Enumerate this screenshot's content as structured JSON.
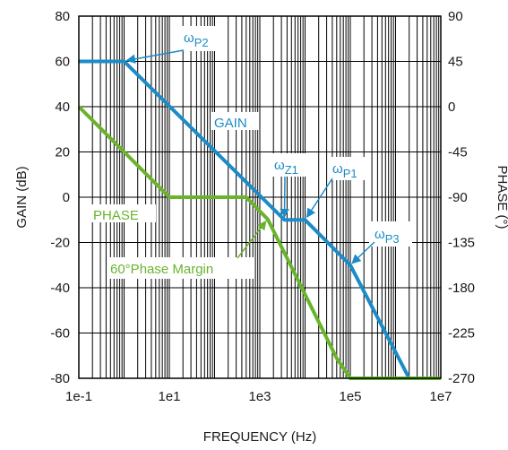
{
  "chart_data": {
    "type": "line",
    "xlabel": "FREQUENCY (Hz)",
    "ylabel_left": "GAIN (dB)",
    "ylabel_right": "PHASE (°)",
    "x_scale": "log",
    "x_range": [
      0.1,
      10000000
    ],
    "x_ticks": [
      {
        "value": 0.1,
        "label": "1e-1"
      },
      {
        "value": 10,
        "label": "1e1"
      },
      {
        "value": 1000,
        "label": "1e3"
      },
      {
        "value": 100000,
        "label": "1e5"
      },
      {
        "value": 10000000,
        "label": "1e7"
      }
    ],
    "y_left_range": [
      -80,
      80
    ],
    "y_left_ticks": [
      "80",
      "60",
      "40",
      "20",
      "0",
      "-20",
      "-40",
      "-60",
      "-80"
    ],
    "y_right_range": [
      -270,
      90
    ],
    "y_right_ticks": [
      "90",
      "45",
      "0",
      "-45",
      "-90",
      "-135",
      "-180",
      "-225",
      "-270"
    ],
    "grid": true,
    "series": [
      {
        "name": "GAIN",
        "axis": "left",
        "color": "#1b8cc8",
        "points": [
          [
            0.1,
            60
          ],
          [
            1,
            60
          ],
          [
            3500,
            -10
          ],
          [
            10000,
            -10
          ],
          [
            100000,
            -30
          ],
          [
            2000000,
            -80
          ]
        ]
      },
      {
        "name": "PHASE",
        "axis": "right",
        "color": "#6ab42d",
        "points": [
          [
            0.1,
            0
          ],
          [
            10,
            -90
          ],
          [
            500,
            -90
          ],
          [
            1500,
            -112
          ],
          [
            50000,
            -250
          ],
          [
            100000,
            -270
          ],
          [
            10000000,
            -270
          ]
        ]
      }
    ],
    "annotations": [
      {
        "id": "wp2",
        "base": "ω",
        "sub": "P2",
        "color": "#1b8cc8"
      },
      {
        "id": "wz1",
        "base": "ω",
        "sub": "Z1",
        "color": "#1b8cc8"
      },
      {
        "id": "wp1",
        "base": "ω",
        "sub": "P1",
        "color": "#1b8cc8"
      },
      {
        "id": "wp3",
        "base": "ω",
        "sub": "P3",
        "color": "#1b8cc8"
      },
      {
        "id": "pm",
        "text": "60°Phase Margin",
        "color": "#6ab42d"
      }
    ]
  }
}
